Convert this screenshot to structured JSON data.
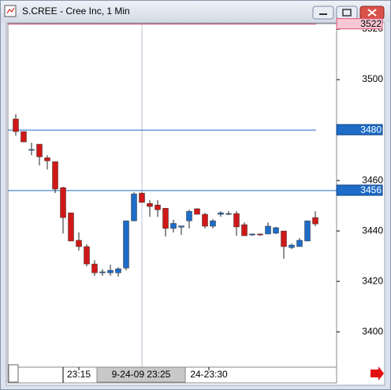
{
  "chart_data": {
    "type": "candlestick",
    "title": "S.CREE - Cree Inc, 1 Min",
    "open": [
      3484.4,
      3479.4,
      3472.0,
      3474.4,
      3469.0,
      3467.5,
      3457.2,
      3447.2,
      3436.3,
      3433.8,
      3426.9,
      3423.4,
      3423.4,
      3423.4,
      3425.3,
      3444.0,
      3455.0,
      3450.9,
      3450.3,
      3449.0,
      3441.0,
      3441.5,
      3444.0,
      3448.8,
      3446.6,
      3441.9,
      3446.6,
      3446.9,
      3446.9,
      3442.5,
      3438.4,
      3438.8,
      3438.8,
      3439.1,
      3440.0,
      3433.4,
      3433.8,
      3436.0,
      3445.3
    ],
    "high": [
      3486.3,
      3479.4,
      3475.0,
      3474.4,
      3470.0,
      3467.5,
      3457.5,
      3447.2,
      3439.4,
      3434.7,
      3428.4,
      3424.8,
      3426.6,
      3425.6,
      3444.0,
      3455.3,
      3455.3,
      3452.2,
      3452.2,
      3449.0,
      3444.4,
      3442.0,
      3448.4,
      3449.0,
      3447.2,
      3444.7,
      3447.8,
      3447.8,
      3447.8,
      3443.4,
      3439.0,
      3439.0,
      3443.4,
      3441.6,
      3440.0,
      3435.0,
      3437.2,
      3444.0,
      3447.8
    ],
    "low": [
      3477.8,
      3475.3,
      3470.0,
      3466.0,
      3464.4,
      3455.0,
      3439.0,
      3436.0,
      3432.2,
      3426.0,
      3422.2,
      3422.2,
      3422.2,
      3421.9,
      3424.4,
      3444.0,
      3451.3,
      3445.6,
      3445.6,
      3437.8,
      3439.4,
      3438.4,
      3441.0,
      3446.6,
      3441.0,
      3441.0,
      3445.6,
      3446.3,
      3438.1,
      3438.1,
      3438.1,
      3438.1,
      3438.8,
      3438.8,
      3429.0,
      3432.8,
      3433.8,
      3436.0,
      3441.9
    ],
    "close": [
      3479.4,
      3475.3,
      3472.3,
      3469.4,
      3467.8,
      3456.6,
      3445.3,
      3436.0,
      3433.8,
      3426.9,
      3423.4,
      3423.8,
      3424.4,
      3425.0,
      3444.0,
      3454.7,
      3451.3,
      3449.7,
      3448.4,
      3441.0,
      3443.0,
      3442.0,
      3447.8,
      3446.6,
      3441.9,
      3444.0,
      3447.2,
      3446.9,
      3441.6,
      3438.1,
      3438.8,
      3438.4,
      3441.9,
      3441.3,
      3433.8,
      3434.4,
      3436.3,
      3444.0,
      3442.8
    ],
    "up_color": "#1e6cc8",
    "down_color": "#d01818",
    "ylim": [
      3386,
      3522.2
    ],
    "yticks": [
      3400,
      3420,
      3440,
      3460,
      3480,
      3500,
      3520
    ],
    "hlines": [
      {
        "value": 3522,
        "color": "#e05078"
      },
      {
        "value": 3480,
        "color": "#1e6cc8"
      },
      {
        "value": 3456,
        "color": "#1e6cc8"
      }
    ],
    "xticks": [
      {
        "value": 8,
        "label": "23:15"
      },
      {
        "value": 24.5,
        "label": "24-23:30"
      }
    ],
    "crosshair_label": "9-24-09 23:25"
  }
}
